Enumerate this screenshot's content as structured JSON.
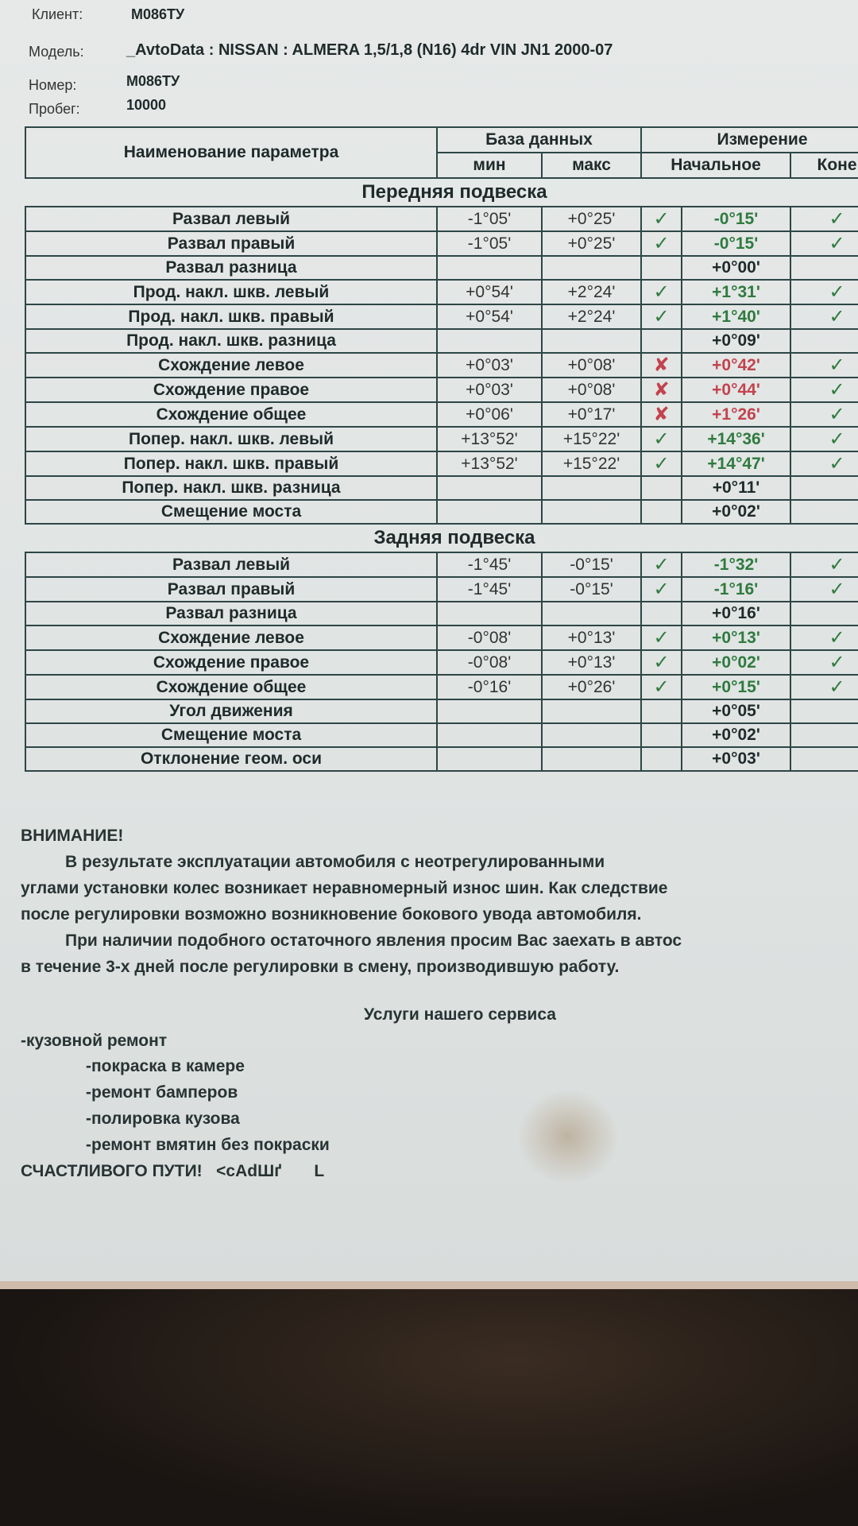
{
  "header": {
    "client_label": "Клиент:",
    "client": "М086ТУ",
    "model_label": "Модель:",
    "model": "_AvtoData : NISSAN : ALMERA 1,5/1,8 (N16) 4dr VIN JN1 2000-07",
    "number_label": "Номер:",
    "number": "М086ТУ",
    "mileage_label": "Пробег:",
    "mileage": "10000"
  },
  "table": {
    "param_header": "Наименование параметра",
    "db_header": "База данных",
    "measure_header": "Измерение",
    "min_header": "мин",
    "max_header": "макс",
    "initial_header": "Начальное",
    "final_header": "Коне",
    "front_title": "Передняя подвеска",
    "rear_title": "Задняя подвеска",
    "front": [
      {
        "name": "Развал левый",
        "min": "-1°05'",
        "max": "+0°25'",
        "status": "ok",
        "value": "-0°15'",
        "final": "ok"
      },
      {
        "name": "Развал правый",
        "min": "-1°05'",
        "max": "+0°25'",
        "status": "ok",
        "value": "-0°15'",
        "final": "ok"
      },
      {
        "name": "Развал разница",
        "min": "",
        "max": "",
        "status": "",
        "value": "+0°00'",
        "final": ""
      },
      {
        "name": "Прод. накл. шкв. левый",
        "min": "+0°54'",
        "max": "+2°24'",
        "status": "ok",
        "value": "+1°31'",
        "final": "ok"
      },
      {
        "name": "Прод. накл. шкв. правый",
        "min": "+0°54'",
        "max": "+2°24'",
        "status": "ok",
        "value": "+1°40'",
        "final": "ok"
      },
      {
        "name": "Прод. накл. шкв. разница",
        "min": "",
        "max": "",
        "status": "",
        "value": "+0°09'",
        "final": ""
      },
      {
        "name": "Схождение левое",
        "min": "+0°03'",
        "max": "+0°08'",
        "status": "bad",
        "value": "+0°42'",
        "final": "ok"
      },
      {
        "name": "Схождение правое",
        "min": "+0°03'",
        "max": "+0°08'",
        "status": "bad",
        "value": "+0°44'",
        "final": "ok"
      },
      {
        "name": "Схождение общее",
        "min": "+0°06'",
        "max": "+0°17'",
        "status": "bad",
        "value": "+1°26'",
        "final": "ok"
      },
      {
        "name": "Попер. накл. шкв. левый",
        "min": "+13°52'",
        "max": "+15°22'",
        "status": "ok",
        "value": "+14°36'",
        "final": "ok"
      },
      {
        "name": "Попер. накл. шкв. правый",
        "min": "+13°52'",
        "max": "+15°22'",
        "status": "ok",
        "value": "+14°47'",
        "final": "ok"
      },
      {
        "name": "Попер. накл. шкв. разница",
        "min": "",
        "max": "",
        "status": "",
        "value": "+0°11'",
        "final": ""
      },
      {
        "name": "Смещение моста",
        "min": "",
        "max": "",
        "status": "",
        "value": "+0°02'",
        "final": ""
      }
    ],
    "rear": [
      {
        "name": "Развал левый",
        "min": "-1°45'",
        "max": "-0°15'",
        "status": "ok",
        "value": "-1°32'",
        "final": "ok"
      },
      {
        "name": "Развал правый",
        "min": "-1°45'",
        "max": "-0°15'",
        "status": "ok",
        "value": "-1°16'",
        "final": "ok"
      },
      {
        "name": "Развал разница",
        "min": "",
        "max": "",
        "status": "",
        "value": "+0°16'",
        "final": ""
      },
      {
        "name": "Схождение левое",
        "min": "-0°08'",
        "max": "+0°13'",
        "status": "ok",
        "value": "+0°13'",
        "final": "ok"
      },
      {
        "name": "Схождение правое",
        "min": "-0°08'",
        "max": "+0°13'",
        "status": "ok",
        "value": "+0°02'",
        "final": "ok"
      },
      {
        "name": "Схождение общее",
        "min": "-0°16'",
        "max": "+0°26'",
        "status": "ok",
        "value": "+0°15'",
        "final": "ok"
      },
      {
        "name": "Угол движения",
        "min": "",
        "max": "",
        "status": "",
        "value": "+0°05'",
        "final": ""
      },
      {
        "name": "Смещение моста",
        "min": "",
        "max": "",
        "status": "",
        "value": "+0°02'",
        "final": ""
      },
      {
        "name": "Отклонение геом. оси",
        "min": "",
        "max": "",
        "status": "",
        "value": "+0°03'",
        "final": ""
      }
    ],
    "colors": {
      "ok": "#2f7a3f",
      "bad": "#c2434d"
    }
  },
  "notice": {
    "title": "ВНИМАНИЕ!",
    "lines": [
      "В результате эксплуатации автомобиля с неотрегулированными",
      "углами установки колес возникает неравномерный износ шин. Как следствие",
      "после регулировки возможно возникновение бокового увода автомобиля.",
      "При наличии подобного остаточного явления просим Вас заехать в автос",
      "в течение 3-х дней после регулировки в смену, производившую работу."
    ]
  },
  "services": {
    "title": "Услуги нашего сервиса",
    "main": "-кузовной ремонт",
    "items": [
      "-покраска в камере",
      "-ремонт бамперов",
      "-полировка кузова",
      "-ремонт вмятин без покраски"
    ],
    "farewell": "СЧАСТЛИВОГО ПУТИ!   <cAdШґ       L"
  }
}
